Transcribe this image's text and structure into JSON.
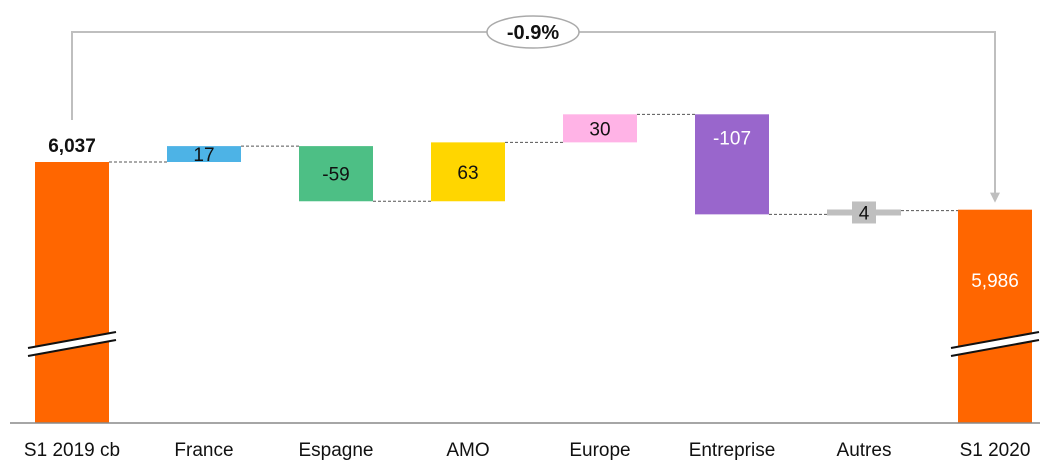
{
  "chart_data": {
    "type": "waterfall",
    "categories": [
      "S1 2019 cb",
      "France",
      "Espagne",
      "AMO",
      "Europe",
      "Entreprise",
      "Autres",
      "S1 2020"
    ],
    "start": {
      "category": "S1 2019 cb",
      "value": 6037,
      "label": "6,037"
    },
    "end": {
      "category": "S1 2020",
      "value": 5986,
      "label": "5,986"
    },
    "steps": [
      {
        "category": "France",
        "value": 17,
        "label": "17"
      },
      {
        "category": "Espagne",
        "value": -59,
        "label": "-59"
      },
      {
        "category": "AMO",
        "value": 63,
        "label": "63"
      },
      {
        "category": "Europe",
        "value": 30,
        "label": "30"
      },
      {
        "category": "Entreprise",
        "value": -107,
        "label": "-107"
      },
      {
        "category": "Autres",
        "value": 4,
        "label": "4"
      }
    ],
    "change_annotation": "-0.9%",
    "axis_break": true,
    "colors": {
      "total": "#ff6600",
      "France": "#4db3e6",
      "Espagne": "#4dbf85",
      "AMO": "#ffd600",
      "Europe": "#ffb3e6",
      "Entreprise": "#9966cc",
      "Autres": "#bfbfbf",
      "connector": "#555555",
      "arrow": "#bfbfbf",
      "axis": "#888888"
    }
  }
}
